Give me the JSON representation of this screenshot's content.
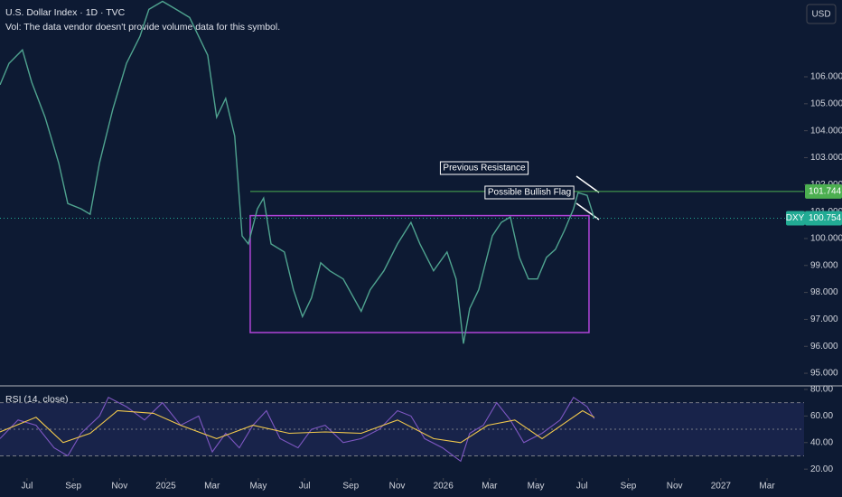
{
  "currency": "USD",
  "chart_data": [
    {
      "type": "line",
      "title": "U.S. Dollar Index · 1D · TVC",
      "subtitle": "Vol: The data vendor doesn't provide volume data for this symbol.",
      "symbol": "DXY",
      "x": [
        -1.17,
        -0.78,
        -0.2,
        0.2,
        0.78,
        1.37,
        1.76,
        2.34,
        2.73,
        3.13,
        3.71,
        4.3,
        4.88,
        5.27,
        5.86,
        6.45,
        7.03,
        7.81,
        8.2,
        8.59,
        8.98,
        9.3,
        9.57,
        9.96,
        10.23,
        10.55,
        11.13,
        11.52,
        11.91,
        12.3,
        12.7,
        13.09,
        13.67,
        14.45,
        14.84,
        15.43,
        16.02,
        16.6,
        16.99,
        17.58,
        18.16,
        18.55,
        18.87,
        19.14,
        19.53,
        20.12,
        20.51,
        20.9,
        21.29,
        21.68,
        22.07,
        22.46,
        22.85,
        23.24,
        23.63,
        23.83,
        24.22,
        24.53
      ],
      "series": [
        {
          "color": "#4fa38f",
          "values": [
            105.7,
            106.5,
            107.0,
            105.8,
            104.5,
            102.8,
            101.3,
            101.1,
            100.9,
            102.8,
            104.8,
            106.5,
            107.5,
            108.5,
            108.8,
            108.5,
            108.2,
            106.8,
            104.5,
            105.2,
            103.8,
            100.1,
            99.8,
            101.1,
            101.5,
            99.8,
            99.5,
            98.1,
            97.1,
            97.8,
            99.1,
            98.8,
            98.5,
            97.3,
            98.1,
            98.8,
            99.8,
            100.6,
            99.8,
            98.8,
            99.5,
            98.5,
            96.1,
            97.4,
            98.1,
            100.1,
            100.6,
            100.8,
            99.3,
            98.5,
            98.5,
            99.3,
            99.6,
            100.3,
            101.1,
            101.7,
            101.6,
            100.754
          ]
        }
      ],
      "xlim": [
        -1.17,
        33.6
      ],
      "ylim": [
        94.6,
        108.85
      ],
      "yticks": [
        {
          "value": 95,
          "label": "95.000"
        },
        {
          "value": 96,
          "label": "96.000"
        },
        {
          "value": 97,
          "label": "97.000"
        },
        {
          "value": 98,
          "label": "98.000"
        },
        {
          "value": 99,
          "label": "99.000"
        },
        {
          "value": 100,
          "label": "100.000"
        },
        {
          "value": 101,
          "label": "101.000"
        },
        {
          "value": 102,
          "label": "102.000"
        },
        {
          "value": 103,
          "label": "103.000"
        },
        {
          "value": 104,
          "label": "104.000"
        },
        {
          "value": 105,
          "label": "105.000"
        },
        {
          "value": 106,
          "label": "106.000"
        }
      ],
      "resistance": {
        "value": 101.744,
        "label": "101.744",
        "color": "#4caf50"
      },
      "last_price": {
        "value": 100.754,
        "label": "100.754",
        "color": "#22ab94"
      },
      "range_box": {
        "x": [
          9.65,
          24.3
        ],
        "y": [
          96.51,
          100.85
        ],
        "color": "#b044d9"
      },
      "annotations": [
        "Previous Resistance",
        "Possible Bullish Flag"
      ]
    },
    {
      "type": "line",
      "title": "RSI (14, close)",
      "series": [
        {
          "color": "#7e57c2",
          "x": [
            -1.17,
            -0.39,
            0.39,
            1.17,
            1.76,
            2.34,
            3.13,
            3.52,
            4.3,
            5.08,
            5.86,
            6.64,
            7.42,
            8.01,
            8.59,
            9.18,
            9.77,
            10.35,
            10.94,
            11.72,
            12.3,
            12.89,
            13.67,
            14.45,
            15.23,
            16.02,
            16.6,
            17.19,
            17.97,
            18.75,
            19.14,
            19.73,
            20.31,
            20.9,
            21.48,
            22.27,
            23.05,
            23.63,
            24.22,
            24.53
          ],
          "values": [
            43,
            57,
            53,
            36,
            30,
            47,
            60,
            74,
            67,
            57,
            70,
            53,
            60,
            33,
            47,
            36,
            53,
            64,
            43,
            36,
            50,
            53,
            40,
            43,
            50,
            64,
            60,
            43,
            36,
            26,
            47,
            53,
            70,
            57,
            40,
            47,
            57,
            74,
            67,
            58
          ]
        },
        {
          "color": "#f2c94c",
          "x": [
            -1.17,
            0.39,
            1.56,
            2.73,
            3.91,
            5.47,
            6.64,
            8.2,
            9.77,
            11.33,
            12.89,
            14.45,
            16.02,
            17.58,
            18.75,
            19.92,
            21.09,
            22.27,
            23.44,
            24.02,
            24.53
          ],
          "values": [
            48,
            59,
            40,
            47,
            64,
            62,
            53,
            43,
            53,
            47,
            48,
            47,
            57,
            43,
            40,
            53,
            57,
            43,
            57,
            64,
            59
          ]
        }
      ],
      "xlim": [
        -1.17,
        33.6
      ],
      "ylim": [
        14,
        82
      ],
      "yticks": [
        {
          "value": 20,
          "label": "20.00"
        },
        {
          "value": 40,
          "label": "40.00"
        },
        {
          "value": 60,
          "label": "60.00"
        },
        {
          "value": 80,
          "label": "80.00"
        }
      ],
      "band": [
        30,
        70
      ],
      "midline": 50,
      "xticks": [
        {
          "value": 0,
          "label": "Jul"
        },
        {
          "value": 2,
          "label": "Sep"
        },
        {
          "value": 4,
          "label": "Nov"
        },
        {
          "value": 6,
          "label": "2025"
        },
        {
          "value": 8,
          "label": "Mar"
        },
        {
          "value": 10,
          "label": "May"
        },
        {
          "value": 12,
          "label": "Jul"
        },
        {
          "value": 14,
          "label": "Sep"
        },
        {
          "value": 16,
          "label": "Nov"
        },
        {
          "value": 18,
          "label": "2026"
        },
        {
          "value": 20,
          "label": "Mar"
        },
        {
          "value": 22,
          "label": "May"
        },
        {
          "value": 24,
          "label": "Jul"
        },
        {
          "value": 26,
          "label": "Sep"
        },
        {
          "value": 28,
          "label": "Nov"
        },
        {
          "value": 30,
          "label": "2027"
        },
        {
          "value": 32,
          "label": "Mar"
        }
      ]
    }
  ]
}
